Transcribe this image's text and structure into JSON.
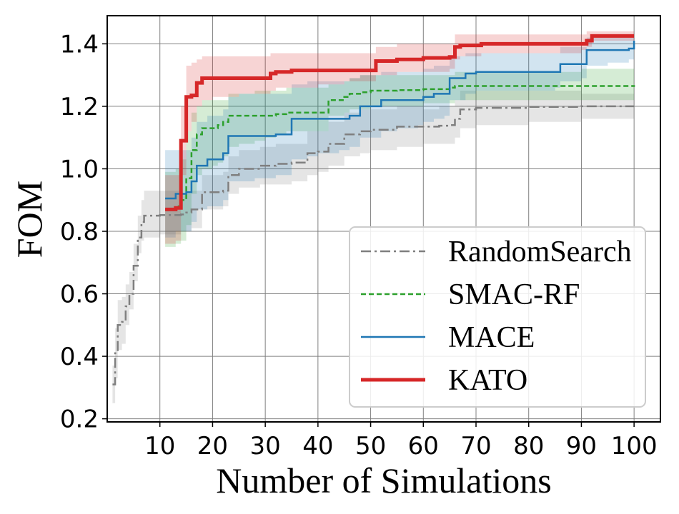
{
  "chart_data": {
    "type": "line",
    "title": "",
    "xlabel": "Number of Simulations",
    "ylabel": "FOM",
    "xlim": [
      0,
      105
    ],
    "ylim": [
      0.19,
      1.49
    ],
    "xticks": [
      10,
      20,
      30,
      40,
      50,
      60,
      70,
      80,
      90,
      100
    ],
    "xtick_labels": [
      "10",
      "20",
      "30",
      "40",
      "50",
      "60",
      "70",
      "80",
      "90",
      "100"
    ],
    "yticks": [
      0.2,
      0.4,
      0.6,
      0.8,
      1.0,
      1.2,
      1.4
    ],
    "ytick_labels": [
      "0.2",
      "0.4",
      "0.6",
      "0.8",
      "1.0",
      "1.2",
      "1.4"
    ],
    "grid": true,
    "legend_position": "bottom-right",
    "series": [
      {
        "name": "RandomSearch",
        "color": "#7f7f7f",
        "style": "dashdot",
        "x": [
          1,
          1.5,
          2,
          2.8,
          3.5,
          4.2,
          5,
          5.8,
          6.5,
          7,
          8,
          10,
          14,
          15,
          16,
          18,
          21,
          22,
          23,
          25,
          29,
          32,
          35,
          38,
          40,
          42,
          45,
          48,
          50,
          55,
          60,
          63,
          65,
          66,
          67,
          70,
          80,
          90,
          100
        ],
        "y": [
          0.31,
          0.41,
          0.5,
          0.51,
          0.56,
          0.6,
          0.69,
          0.78,
          0.83,
          0.85,
          0.85,
          0.852,
          0.854,
          0.86,
          0.87,
          0.925,
          0.925,
          0.93,
          0.98,
          1.0,
          1.01,
          1.016,
          1.02,
          1.05,
          1.055,
          1.08,
          1.11,
          1.12,
          1.125,
          1.135,
          1.135,
          1.138,
          1.14,
          1.16,
          1.19,
          1.195,
          1.198,
          1.2,
          1.2
        ],
        "lower": [
          0.25,
          0.33,
          0.42,
          0.44,
          0.5,
          0.55,
          0.64,
          0.73,
          0.77,
          0.78,
          0.78,
          0.79,
          0.8,
          0.8,
          0.81,
          0.87,
          0.87,
          0.88,
          0.92,
          0.94,
          0.95,
          0.95,
          0.96,
          0.98,
          0.99,
          1.01,
          1.04,
          1.05,
          1.06,
          1.07,
          1.08,
          1.08,
          1.08,
          1.1,
          1.13,
          1.14,
          1.15,
          1.16,
          1.16
        ],
        "upper": [
          0.37,
          0.49,
          0.58,
          0.59,
          0.63,
          0.67,
          0.76,
          0.85,
          0.9,
          0.93,
          0.93,
          0.93,
          0.92,
          0.92,
          0.93,
          0.98,
          0.98,
          0.99,
          1.04,
          1.06,
          1.07,
          1.08,
          1.08,
          1.12,
          1.12,
          1.15,
          1.18,
          1.19,
          1.19,
          1.2,
          1.19,
          1.2,
          1.2,
          1.22,
          1.25,
          1.25,
          1.25,
          1.24,
          1.24
        ]
      },
      {
        "name": "SMAC-RF",
        "color": "#2ca02c",
        "style": "dashed",
        "x": [
          11,
          12,
          13,
          14,
          15,
          16,
          17,
          18,
          20,
          21,
          22,
          23,
          25,
          28,
          30,
          32,
          34,
          38,
          40,
          42,
          45,
          46,
          48,
          50,
          55,
          60,
          65,
          66,
          70,
          80,
          90,
          100
        ],
        "y": [
          0.87,
          0.87,
          0.88,
          0.9,
          0.97,
          1.06,
          1.11,
          1.13,
          1.13,
          1.14,
          1.15,
          1.17,
          1.17,
          1.17,
          1.17,
          1.175,
          1.18,
          1.18,
          1.18,
          1.22,
          1.23,
          1.24,
          1.245,
          1.25,
          1.252,
          1.255,
          1.26,
          1.265,
          1.265,
          1.265,
          1.265,
          1.268
        ],
        "lower": [
          0.75,
          0.75,
          0.76,
          0.77,
          0.82,
          0.92,
          0.98,
          1.0,
          1.01,
          1.02,
          1.04,
          1.07,
          1.08,
          1.09,
          1.1,
          1.11,
          1.12,
          1.12,
          1.12,
          1.17,
          1.18,
          1.19,
          1.19,
          1.2,
          1.2,
          1.21,
          1.21,
          1.22,
          1.22,
          1.22,
          1.22,
          1.22
        ],
        "upper": [
          0.99,
          0.99,
          1.0,
          1.03,
          1.12,
          1.18,
          1.2,
          1.22,
          1.22,
          1.22,
          1.22,
          1.24,
          1.24,
          1.25,
          1.25,
          1.25,
          1.26,
          1.26,
          1.26,
          1.27,
          1.28,
          1.29,
          1.3,
          1.3,
          1.3,
          1.3,
          1.3,
          1.31,
          1.31,
          1.31,
          1.32,
          1.32
        ]
      },
      {
        "name": "MACE",
        "color": "#1f77b4",
        "style": "solid",
        "x": [
          11,
          12,
          13,
          14,
          15,
          16,
          17,
          18,
          19,
          21,
          22,
          23,
          25,
          28,
          30,
          32,
          35,
          38,
          40,
          44,
          46,
          48,
          50,
          52,
          55,
          59,
          60,
          62,
          64,
          65,
          66,
          68,
          70,
          75,
          80,
          85,
          86,
          88,
          90,
          91,
          95,
          99,
          100
        ],
        "y": [
          0.905,
          0.905,
          0.92,
          0.92,
          0.925,
          0.96,
          1.01,
          1.01,
          1.03,
          1.03,
          1.05,
          1.105,
          1.105,
          1.105,
          1.105,
          1.11,
          1.16,
          1.16,
          1.16,
          1.16,
          1.17,
          1.2,
          1.2,
          1.22,
          1.22,
          1.22,
          1.23,
          1.24,
          1.24,
          1.29,
          1.29,
          1.305,
          1.31,
          1.31,
          1.31,
          1.31,
          1.335,
          1.335,
          1.335,
          1.38,
          1.38,
          1.385,
          1.41
        ],
        "lower": [
          0.78,
          0.78,
          0.8,
          0.8,
          0.8,
          0.83,
          0.87,
          0.87,
          0.88,
          0.88,
          0.9,
          0.96,
          0.96,
          0.97,
          0.97,
          0.98,
          1.03,
          1.04,
          1.05,
          1.06,
          1.07,
          1.1,
          1.1,
          1.12,
          1.13,
          1.14,
          1.15,
          1.16,
          1.17,
          1.22,
          1.22,
          1.24,
          1.25,
          1.25,
          1.25,
          1.26,
          1.28,
          1.28,
          1.29,
          1.33,
          1.34,
          1.35,
          1.38
        ],
        "upper": [
          1.06,
          1.06,
          1.06,
          1.06,
          1.06,
          1.1,
          1.15,
          1.15,
          1.17,
          1.17,
          1.19,
          1.23,
          1.24,
          1.24,
          1.24,
          1.24,
          1.27,
          1.28,
          1.28,
          1.28,
          1.29,
          1.3,
          1.3,
          1.31,
          1.31,
          1.31,
          1.32,
          1.33,
          1.33,
          1.36,
          1.36,
          1.37,
          1.37,
          1.37,
          1.37,
          1.37,
          1.39,
          1.39,
          1.39,
          1.42,
          1.42,
          1.42,
          1.44
        ]
      },
      {
        "name": "KATO",
        "color": "#d62728",
        "style": "solid-thick",
        "x": [
          11,
          12,
          13,
          14,
          15,
          16,
          17,
          18,
          20,
          25,
          30,
          31,
          32,
          35,
          40,
          45,
          50,
          51,
          55,
          60,
          65,
          66,
          67,
          70,
          71,
          72,
          80,
          90,
          91,
          92,
          95,
          100
        ],
        "y": [
          0.87,
          0.87,
          0.875,
          1.09,
          1.23,
          1.235,
          1.275,
          1.29,
          1.29,
          1.29,
          1.29,
          1.305,
          1.31,
          1.315,
          1.315,
          1.315,
          1.315,
          1.345,
          1.35,
          1.355,
          1.358,
          1.39,
          1.395,
          1.395,
          1.4,
          1.4,
          1.4,
          1.4,
          1.41,
          1.425,
          1.425,
          1.425
        ],
        "lower": [
          0.76,
          0.76,
          0.77,
          0.98,
          1.12,
          1.15,
          1.2,
          1.22,
          1.23,
          1.24,
          1.24,
          1.25,
          1.26,
          1.26,
          1.27,
          1.28,
          1.28,
          1.3,
          1.31,
          1.31,
          1.32,
          1.35,
          1.36,
          1.36,
          1.37,
          1.37,
          1.37,
          1.38,
          1.39,
          1.41,
          1.41,
          1.41
        ],
        "upper": [
          0.98,
          0.98,
          0.98,
          1.2,
          1.33,
          1.34,
          1.35,
          1.36,
          1.36,
          1.36,
          1.36,
          1.37,
          1.37,
          1.37,
          1.37,
          1.37,
          1.37,
          1.39,
          1.4,
          1.4,
          1.4,
          1.43,
          1.43,
          1.43,
          1.43,
          1.43,
          1.43,
          1.43,
          1.44,
          1.44,
          1.44,
          1.44
        ]
      }
    ]
  }
}
